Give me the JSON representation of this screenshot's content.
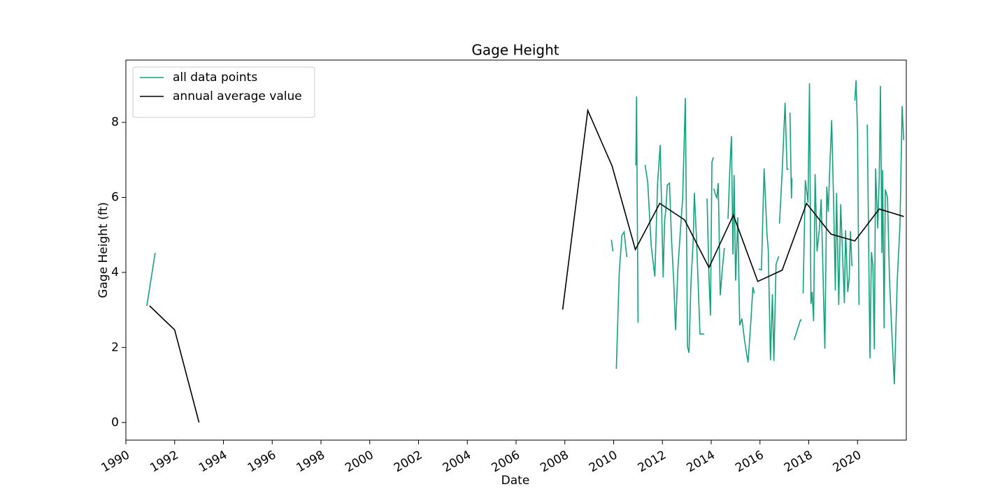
{
  "chart_data": {
    "type": "line",
    "title": "Gage Height",
    "xlabel": "Date",
    "ylabel": "Gage Height (ft)",
    "xlim": [
      1990,
      2022
    ],
    "xticks": [
      1990,
      1992,
      1994,
      1996,
      1998,
      2000,
      2002,
      2004,
      2006,
      2008,
      2010,
      2012,
      2014,
      2016,
      2018,
      2020
    ],
    "ylim": [
      -0.47,
      9.66
    ],
    "yticks": [
      0,
      2,
      4,
      6,
      8
    ],
    "grid": false,
    "legend": "upper left",
    "series": [
      {
        "name": "all data points",
        "color": "#12a37f",
        "x": [
          1990.86,
          1991.2,
          null,
          2009.91,
          2009.97,
          null,
          2010.11,
          2010.23,
          2010.34,
          2010.43,
          2010.54,
          null,
          2010.91,
          2010.94,
          2011.0,
          null,
          2011.29,
          2011.4,
          2011.54,
          2011.69,
          2011.8,
          2011.91,
          2012.03,
          2012.09,
          2012.14,
          2012.2,
          2012.29,
          2012.37,
          2012.46,
          2012.54,
          2012.63,
          2012.74,
          2012.83,
          2012.94,
          2013.03,
          2013.09,
          2013.17,
          2013.26,
          2013.31,
          2013.4,
          2013.54,
          2013.71,
          null,
          2013.83,
          2013.91,
          2013.97,
          2014.03,
          2014.09,
          null,
          2014.11,
          2014.17,
          2014.23,
          2014.29,
          2014.37,
          2014.46,
          2014.54,
          null,
          2014.69,
          2014.77,
          2014.83,
          2014.89,
          2014.94,
          2015.0,
          2015.09,
          2015.17,
          2015.26,
          2015.37,
          2015.51,
          2015.63,
          2015.71,
          2015.77,
          null,
          2015.94,
          2016.06,
          2016.17,
          2016.29,
          2016.34,
          2016.43,
          2016.51,
          2016.57,
          2016.66,
          2016.77,
          null,
          2016.8,
          2016.91,
          2017.03,
          2017.11,
          2017.17,
          null,
          2017.23,
          2017.29,
          2017.31,
          null,
          2017.4,
          2017.66,
          2017.71,
          null,
          2017.77,
          2017.86,
          2017.97,
          2018.03,
          2018.09,
          2018.14,
          2018.2,
          2018.26,
          2018.34,
          2018.43,
          2018.51,
          2018.66,
          2018.74,
          2018.8,
          2018.86,
          2018.94,
          2019.03,
          2019.09,
          2019.14,
          2019.23,
          2019.31,
          2019.46,
          2019.51,
          2019.6,
          2019.66,
          2019.71,
          2019.77,
          null,
          2019.89,
          2019.94,
          2020.0,
          2020.06,
          null,
          2020.4,
          2020.51,
          2020.57,
          2020.63,
          2020.69,
          2020.74,
          2020.83,
          2020.89,
          2020.94,
          2021.0,
          2021.03,
          2021.09,
          2021.14,
          2021.23,
          2021.31,
          2021.4,
          2021.51,
          2021.63,
          2021.74,
          2021.83,
          2021.89
        ],
        "values": [
          3.11,
          4.52,
          null,
          4.87,
          4.56,
          null,
          1.43,
          4.0,
          4.99,
          5.08,
          4.41,
          null,
          6.85,
          8.69,
          2.66,
          null,
          6.87,
          6.38,
          4.71,
          3.89,
          6.36,
          7.4,
          3.87,
          5.4,
          5.67,
          6.33,
          6.38,
          4.93,
          3.81,
          2.46,
          4.04,
          5.15,
          5.97,
          8.65,
          2.01,
          1.86,
          3.72,
          4.82,
          6.12,
          4.86,
          2.36,
          2.36,
          null,
          5.97,
          3.85,
          2.85,
          6.94,
          7.07,
          null,
          6.23,
          6.08,
          5.99,
          6.38,
          3.39,
          4.11,
          4.65,
          null,
          5.43,
          6.85,
          7.63,
          4.48,
          6.6,
          3.78,
          5.47,
          2.59,
          2.77,
          2.18,
          1.6,
          2.73,
          3.61,
          3.44,
          null,
          4.09,
          4.07,
          6.77,
          5.0,
          4.6,
          1.66,
          3.42,
          1.64,
          4.22,
          4.43,
          null,
          5.3,
          6.68,
          8.52,
          6.75,
          6.75,
          null,
          8.26,
          5.97,
          6.51,
          null,
          2.2,
          2.73,
          2.73,
          null,
          3.44,
          6.46,
          5.86,
          9.04,
          3.16,
          3.48,
          2.7,
          6.62,
          4.56,
          5.12,
          5.95,
          1.97,
          6.29,
          5.62,
          6.75,
          8.06,
          5.56,
          3.52,
          6.12,
          3.13,
          5.82,
          3.18,
          5.12,
          3.48,
          3.85,
          5.1,
          4.17,
          null,
          8.58,
          9.12,
          7.72,
          3.13,
          null,
          7.94,
          1.71,
          4.54,
          4.19,
          1.95,
          6.77,
          5.17,
          6.53,
          8.97,
          4.52,
          6.73,
          2.51,
          6.21,
          5.99,
          3.83,
          2.51,
          1.02,
          3.81,
          5.25,
          8.43,
          7.53
        ]
      },
      {
        "name": "annual average value",
        "color": "#000000",
        "x": [
          1990.97,
          1992.0,
          1993.0,
          null,
          2007.91,
          2008.94,
          2009.94,
          2010.89,
          2011.89,
          2012.91,
          2013.91,
          2014.91,
          2015.91,
          2016.91,
          2017.91,
          2018.91,
          2019.89,
          2020.89,
          2021.9
        ],
        "values": [
          3.11,
          2.47,
          0,
          null,
          3.01,
          8.32,
          6.83,
          4.61,
          5.84,
          5.4,
          4.13,
          5.53,
          3.76,
          4.06,
          5.84,
          5.02,
          4.84,
          5.69,
          5.49
        ]
      }
    ]
  }
}
